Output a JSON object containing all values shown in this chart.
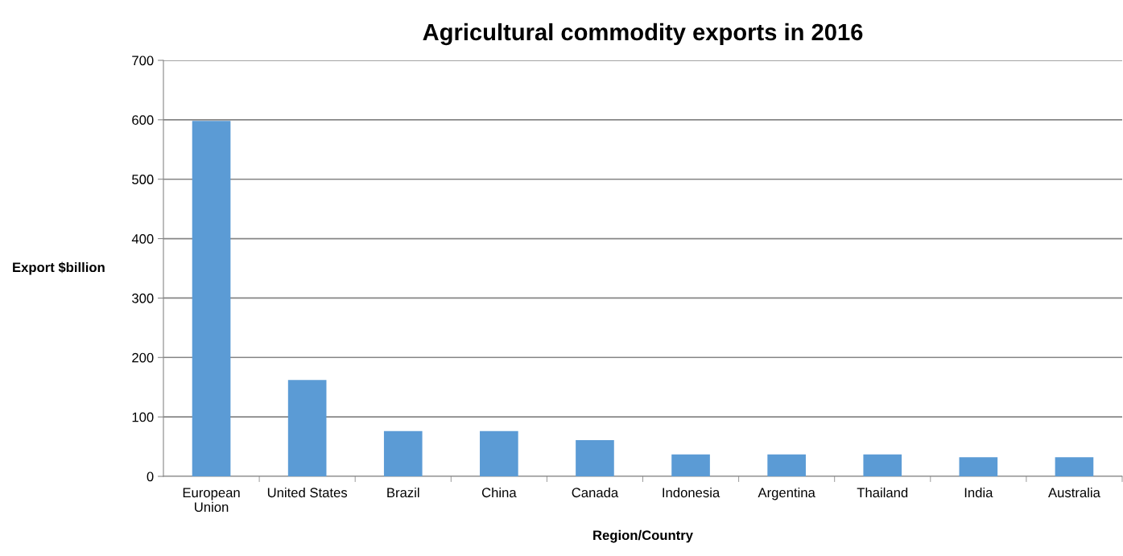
{
  "chart_data": {
    "type": "bar",
    "title": "Agricultural commodity exports in 2016",
    "xlabel": "Region/Country",
    "ylabel": "Export $billion",
    "categories": [
      "European\nUnion",
      "United States",
      "Brazil",
      "China",
      "Canada",
      "Indonesia",
      "Argentina",
      "Thailand",
      "India",
      "Australia"
    ],
    "values": [
      598,
      162,
      76,
      76,
      61,
      37,
      37,
      37,
      32,
      32
    ],
    "color": "#5b9bd5",
    "ylim": [
      0,
      700
    ],
    "yticks": [
      0,
      100,
      200,
      300,
      400,
      500,
      600,
      700
    ],
    "grid": "y"
  }
}
